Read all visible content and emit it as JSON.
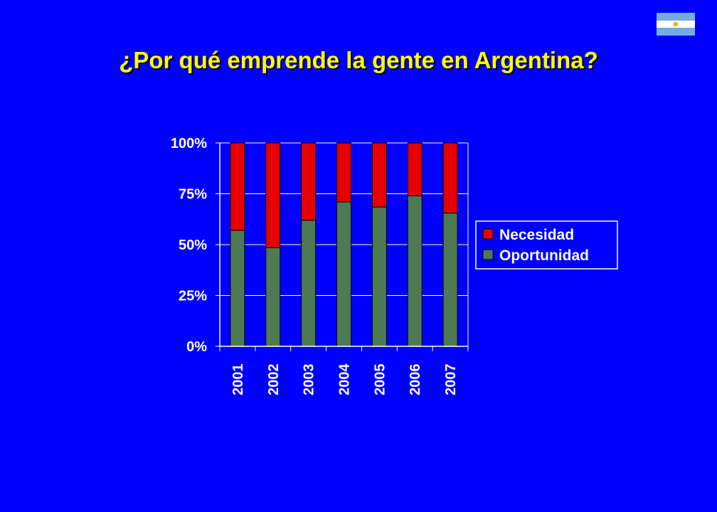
{
  "slide": {
    "title": "¿Por qué emprende la gente en Argentina?"
  },
  "flag": {
    "icon": "argentina-flag-icon",
    "colors": {
      "sky_blue": "#74acdf",
      "white": "#ffffff",
      "sun": "#f6b40e"
    }
  },
  "colors": {
    "background": "#0000ff",
    "title": "#ffff00",
    "axis_text": "#ffffff",
    "necesidad": "#e60000",
    "oportunidad": "#4d7a53",
    "gridline": "#ffffff"
  },
  "chart_data": {
    "type": "bar",
    "stacked": "percent",
    "title": "",
    "xlabel": "",
    "ylabel": "",
    "categories": [
      "2001",
      "2002",
      "2003",
      "2004",
      "2005",
      "2006",
      "2007"
    ],
    "series": [
      {
        "name": "Oportunidad",
        "values": [
          57,
          48.5,
          62,
          71,
          68.5,
          74,
          65.5
        ]
      },
      {
        "name": "Necesidad",
        "values": [
          43,
          51.5,
          38,
          29,
          31.5,
          26,
          34.5
        ]
      }
    ],
    "ylim": [
      0,
      100
    ],
    "yticks": [
      "0%",
      "25%",
      "50%",
      "75%",
      "100%"
    ],
    "grid": true,
    "legend": {
      "position": "right",
      "entries": [
        "Necesidad",
        "Oportunidad"
      ]
    }
  }
}
